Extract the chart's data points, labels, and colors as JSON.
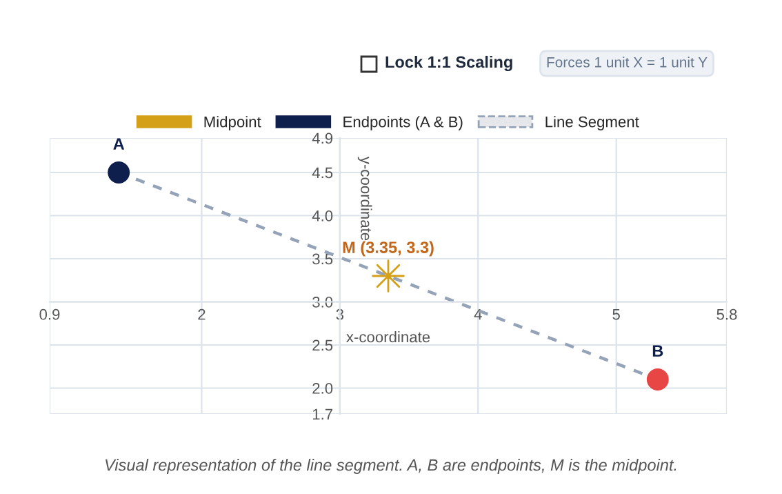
{
  "chart_data": {
    "type": "scatter",
    "xlabel": "x-coordinate",
    "ylabel": "y-coordinate",
    "xlim": [
      0.9,
      5.8
    ],
    "xticks": [
      0.9,
      2,
      3,
      4,
      5,
      5.8
    ],
    "ylim": [
      1.7,
      4.9
    ],
    "yticks": [
      1.7,
      "2.0",
      2.5,
      "3.0",
      3.5,
      "4.0",
      4.5,
      4.9
    ],
    "grid": true,
    "legend": "top",
    "series": [
      {
        "name": "Midpoint",
        "marker": "star",
        "color": "#d4a017",
        "x": [
          3.35
        ],
        "values": [
          3.3
        ]
      },
      {
        "name": "Endpoints (A & B)",
        "marker": "circle",
        "color": "#0f1f4d",
        "colors": [
          "#0f1f4d",
          "#e84545"
        ],
        "x": [
          1.4,
          5.3
        ],
        "values": [
          4.5,
          2.1
        ]
      },
      {
        "name": "Line Segment",
        "type": "line",
        "line_style": "dashed",
        "marker": "none",
        "color": "#94a3b8",
        "x": [
          1.4,
          5.3
        ],
        "values": [
          4.5,
          2.1
        ]
      }
    ],
    "annotations": [
      {
        "text": "A",
        "x": 1.4,
        "y": 4.5
      },
      {
        "text": "B",
        "x": 5.3,
        "y": 2.1
      },
      {
        "text": "M (3.35, 3.3)",
        "x": 3.35,
        "y": 3.3
      },
      "Lock 1:1 Scaling",
      "Forces 1 unit X = 1 unit Y",
      "Visual representation of the line segment. A, B are endpoints, M is the midpoint."
    ]
  }
}
